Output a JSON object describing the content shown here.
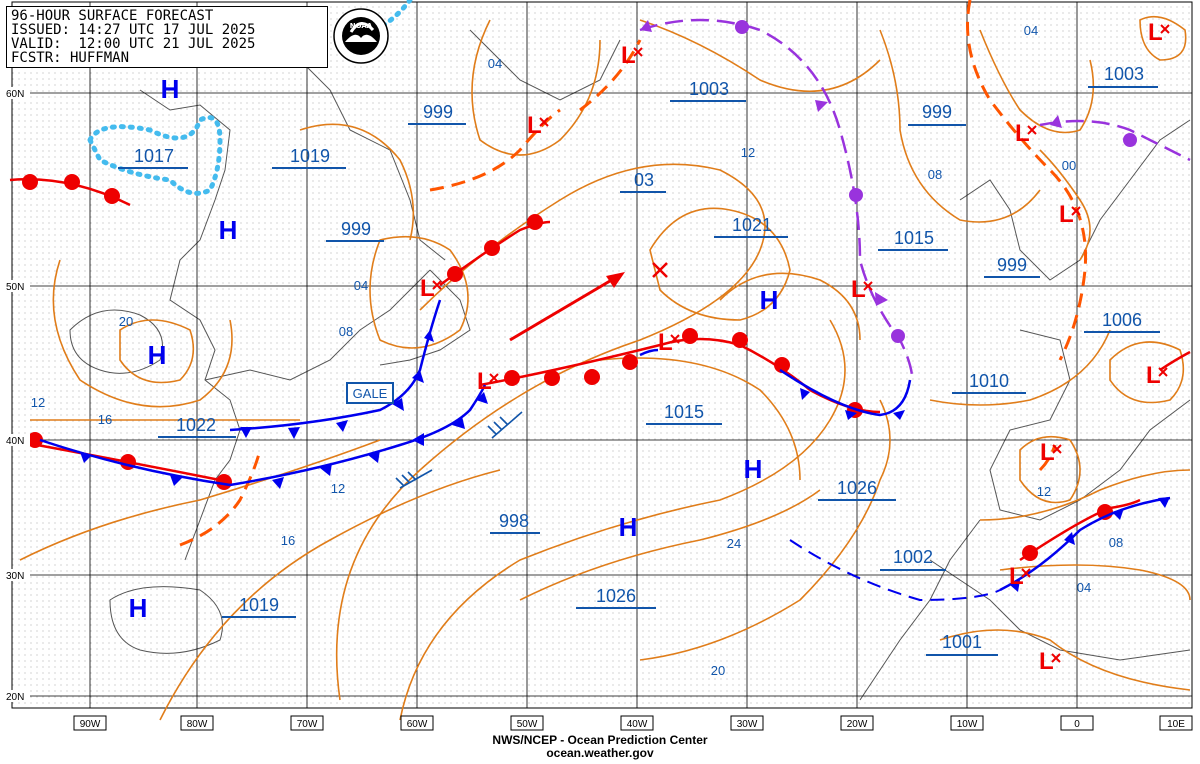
{
  "header": {
    "line1": "96-HOUR SURFACE FORECAST",
    "line2": "ISSUED: 14:27 UTC 17 JUL 2025",
    "line3": "VALID:  12:00 UTC 21 JUL 2025",
    "line4": "FCSTR: HUFFMAN"
  },
  "logo": {
    "text": "NOAA",
    "icon": "noaa-logo"
  },
  "credit": {
    "line1": "NWS/NCEP - Ocean Prediction Center",
    "line2": "ocean.weather.gov"
  },
  "colors": {
    "isobar": "#e07d1a",
    "cold_front": "#0000ee",
    "warm_front": "#ee0000",
    "occluded_front": "#9933dd",
    "trough": "#ff5500",
    "fog": "#44bbee",
    "label": "#1155aa",
    "pressure_symbol": "#0000ee",
    "low_symbol": "#ee0000"
  },
  "lon_labels": [
    "90W",
    "80W",
    "70W",
    "60W",
    "50W",
    "40W",
    "30W",
    "20W",
    "10W",
    "0",
    "10E"
  ],
  "lat_labels": [
    "60N",
    "50N",
    "40N",
    "30N",
    "20N"
  ],
  "highs": [
    {
      "id": "h1",
      "label": "H"
    },
    {
      "id": "h2",
      "label": "H"
    },
    {
      "id": "h3",
      "label": "H"
    },
    {
      "id": "h4",
      "label": "H"
    },
    {
      "id": "h5",
      "label": "H"
    },
    {
      "id": "h6",
      "label": "H"
    },
    {
      "id": "h7",
      "label": "H"
    }
  ],
  "lows": [
    {
      "id": "l1",
      "label": "L"
    },
    {
      "id": "l2",
      "label": "L"
    },
    {
      "id": "l3",
      "label": "L"
    },
    {
      "id": "l4",
      "label": "L"
    },
    {
      "id": "l5",
      "label": "L"
    },
    {
      "id": "l6",
      "label": "L"
    },
    {
      "id": "l7",
      "label": "L"
    },
    {
      "id": "l8",
      "label": "L"
    },
    {
      "id": "l9",
      "label": "L"
    },
    {
      "id": "l10",
      "label": "L"
    },
    {
      "id": "l11",
      "label": "L"
    },
    {
      "id": "l12",
      "label": "L"
    },
    {
      "id": "l13",
      "label": "L"
    }
  ],
  "pressure_labels": [
    {
      "id": "p1",
      "value": "1017"
    },
    {
      "id": "p2",
      "value": "1019"
    },
    {
      "id": "p3",
      "value": "999"
    },
    {
      "id": "p4",
      "value": "999"
    },
    {
      "id": "p5",
      "value": "03"
    },
    {
      "id": "p6",
      "value": "1003"
    },
    {
      "id": "p7",
      "value": "1021"
    },
    {
      "id": "p8",
      "value": "1015"
    },
    {
      "id": "p9",
      "value": "999"
    },
    {
      "id": "p10",
      "value": "1003"
    },
    {
      "id": "p11",
      "value": "999"
    },
    {
      "id": "p12",
      "value": "1006"
    },
    {
      "id": "p13",
      "value": "1010"
    },
    {
      "id": "p14",
      "value": "1015"
    },
    {
      "id": "p15",
      "value": "1022"
    },
    {
      "id": "p16",
      "value": "1026"
    },
    {
      "id": "p17",
      "value": "998"
    },
    {
      "id": "p18",
      "value": "1002"
    },
    {
      "id": "p19",
      "value": "1026"
    },
    {
      "id": "p20",
      "value": "1019"
    },
    {
      "id": "p21",
      "value": "1001"
    }
  ],
  "isobar_labels": [
    {
      "id": "i1",
      "value": "04"
    },
    {
      "id": "i2",
      "value": "04"
    },
    {
      "id": "i3",
      "value": "08"
    },
    {
      "id": "i4",
      "value": "20"
    },
    {
      "id": "i5",
      "value": "12"
    },
    {
      "id": "i6",
      "value": "16"
    },
    {
      "id": "i7",
      "value": "12"
    },
    {
      "id": "i8",
      "value": "16"
    },
    {
      "id": "i9",
      "value": "12"
    },
    {
      "id": "i10",
      "value": "08"
    },
    {
      "id": "i11",
      "value": "00"
    },
    {
      "id": "i12",
      "value": "04"
    },
    {
      "id": "i13",
      "value": "12"
    },
    {
      "id": "i14",
      "value": "08"
    },
    {
      "id": "i15",
      "value": "04"
    },
    {
      "id": "i16",
      "value": "24"
    },
    {
      "id": "i17",
      "value": "20"
    }
  ],
  "warning": {
    "label": "GALE"
  }
}
